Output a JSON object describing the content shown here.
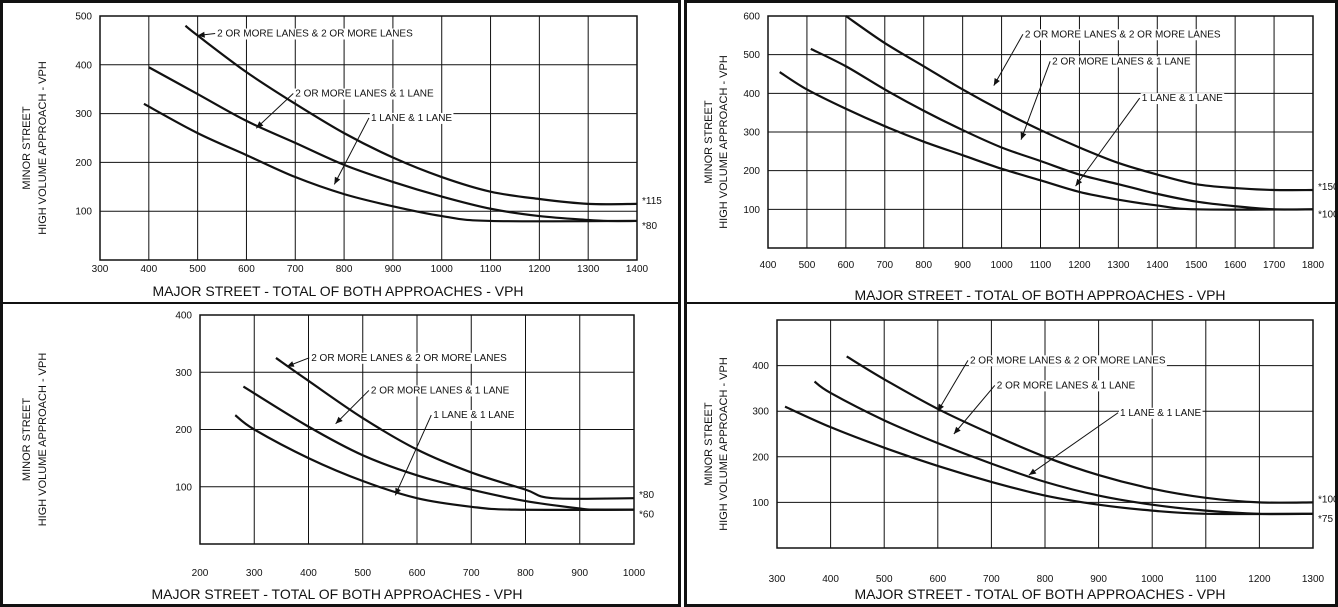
{
  "chart_data": [
    {
      "type": "line",
      "xlabel": "MAJOR STREET - TOTAL OF BOTH APPROACHES - VPH",
      "ylabel_lines": [
        "MINOR STREET",
        "HIGH VOLUME APPROACH - VPH"
      ],
      "xlim": [
        300,
        1400
      ],
      "ylim": [
        0,
        500
      ],
      "x_ticks": [
        300,
        400,
        500,
        600,
        700,
        800,
        900,
        1000,
        1100,
        1200,
        1300,
        1400
      ],
      "y_ticks": [
        100,
        200,
        300,
        400,
        500
      ],
      "grid": true,
      "series": [
        {
          "name": "2 OR MORE LANES & 2 OR MORE LANES",
          "x": [
            475,
            500,
            600,
            700,
            800,
            900,
            1000,
            1100,
            1200,
            1300,
            1400
          ],
          "y": [
            480,
            460,
            385,
            320,
            260,
            210,
            170,
            140,
            125,
            115,
            115
          ],
          "floor_label": "*115",
          "label_xy": [
            540,
            458
          ],
          "arrow_to": [
            500,
            460
          ]
        },
        {
          "name": "2 OR MORE LANES & 1 LANE",
          "x": [
            400,
            500,
            600,
            700,
            800,
            900,
            1000,
            1100,
            1200,
            1300,
            1340,
            1400
          ],
          "y": [
            395,
            340,
            285,
            240,
            195,
            160,
            130,
            105,
            90,
            82,
            80,
            80
          ],
          "floor_label": "*80",
          "label_xy": [
            700,
            335
          ],
          "arrow_to": [
            620,
            270
          ]
        },
        {
          "name": "1 LANE & 1 LANE",
          "x": [
            390,
            500,
            600,
            700,
            800,
            900,
            1000,
            1100,
            1400
          ],
          "y": [
            320,
            260,
            215,
            170,
            135,
            110,
            90,
            80,
            80
          ],
          "label_xy": [
            855,
            285
          ],
          "arrow_to": [
            780,
            155
          ]
        }
      ],
      "floor_values": [
        "*115",
        "*80"
      ]
    },
    {
      "type": "line",
      "xlabel": "MAJOR STREET - TOTAL OF BOTH APPROACHES - VPH",
      "ylabel_lines": [
        "MINOR STREET",
        "HIGH VOLUME APPROACH - VPH"
      ],
      "xlim": [
        400,
        1800
      ],
      "ylim": [
        0,
        600
      ],
      "x_ticks": [
        400,
        500,
        600,
        700,
        800,
        900,
        1000,
        1100,
        1200,
        1300,
        1400,
        1500,
        1600,
        1700,
        1800
      ],
      "y_ticks": [
        100,
        200,
        300,
        400,
        500,
        600
      ],
      "grid": true,
      "series": [
        {
          "name": "2 OR MORE LANES & 2 OR MORE LANES",
          "x": [
            600,
            700,
            800,
            900,
            1000,
            1100,
            1200,
            1300,
            1400,
            1500,
            1600,
            1700,
            1800
          ],
          "y": [
            600,
            530,
            470,
            410,
            355,
            305,
            260,
            220,
            190,
            165,
            155,
            150,
            150
          ],
          "floor_label": "*150",
          "label_xy": [
            1060,
            545
          ],
          "arrow_to": [
            980,
            420
          ]
        },
        {
          "name": "2 OR MORE LANES & 1 LANE",
          "x": [
            510,
            600,
            700,
            800,
            900,
            1000,
            1100,
            1200,
            1300,
            1400,
            1500,
            1600,
            1700,
            1800
          ],
          "y": [
            515,
            470,
            410,
            355,
            305,
            260,
            225,
            190,
            165,
            140,
            120,
            108,
            100,
            100
          ],
          "floor_label": "*100",
          "label_xy": [
            1130,
            475
          ],
          "arrow_to": [
            1050,
            280
          ]
        },
        {
          "name": "1 LANE & 1 LANE",
          "x": [
            430,
            500,
            600,
            700,
            800,
            900,
            1000,
            1100,
            1200,
            1300,
            1400,
            1500,
            1800
          ],
          "y": [
            455,
            410,
            360,
            315,
            275,
            240,
            205,
            175,
            145,
            125,
            110,
            100,
            100
          ],
          "label_xy": [
            1360,
            380
          ],
          "arrow_to": [
            1190,
            160
          ]
        }
      ],
      "floor_values": [
        "*150",
        "*100"
      ]
    },
    {
      "type": "line",
      "xlabel": "MAJOR STREET - TOTAL OF BOTH APPROACHES - VPH",
      "ylabel_lines": [
        "MINOR STREET",
        "HIGH VOLUME APPROACH - VPH"
      ],
      "xlim": [
        200,
        1000
      ],
      "ylim": [
        0,
        400
      ],
      "x_ticks": [
        200,
        300,
        400,
        500,
        600,
        700,
        800,
        900,
        1000
      ],
      "y_ticks": [
        100,
        200,
        300,
        400
      ],
      "grid": true,
      "series": [
        {
          "name": "2 OR MORE LANES & 2 OR MORE LANES",
          "x": [
            340,
            400,
            500,
            600,
            700,
            800,
            850,
            1000
          ],
          "y": [
            325,
            285,
            220,
            165,
            125,
            95,
            80,
            80
          ],
          "floor_label": "*80",
          "label_xy": [
            405,
            320
          ],
          "arrow_to": [
            360,
            310
          ]
        },
        {
          "name": "2 OR MORE LANES & 1 LANE",
          "x": [
            280,
            400,
            500,
            600,
            700,
            800,
            900,
            930,
            1000
          ],
          "y": [
            275,
            205,
            155,
            120,
            95,
            75,
            62,
            60,
            60
          ],
          "floor_label": "*60",
          "label_xy": [
            515,
            263
          ],
          "arrow_to": [
            450,
            210
          ]
        },
        {
          "name": "1 LANE & 1 LANE",
          "x": [
            265,
            300,
            400,
            500,
            600,
            700,
            780,
            1000
          ],
          "y": [
            225,
            200,
            150,
            110,
            80,
            65,
            60,
            60
          ],
          "label_xy": [
            630,
            220
          ],
          "arrow_to": [
            560,
            85
          ]
        }
      ],
      "floor_values": [
        "*80",
        "*60"
      ]
    },
    {
      "type": "line",
      "xlabel": "MAJOR STREET - TOTAL OF BOTH APPROACHES - VPH",
      "ylabel_lines": [
        "MINOR STREET",
        "HIGH VOLUME APPROACH - VPH"
      ],
      "xlim": [
        300,
        1300
      ],
      "ylim": [
        0,
        500
      ],
      "x_ticks": [
        300,
        400,
        500,
        600,
        700,
        800,
        900,
        1000,
        1100,
        1200,
        1300
      ],
      "y_ticks": [
        100,
        200,
        300,
        400
      ],
      "grid": true,
      "series": [
        {
          "name": "2 OR MORE LANES & 2 OR MORE LANES",
          "x": [
            430,
            500,
            600,
            700,
            800,
            900,
            1000,
            1100,
            1200,
            1300
          ],
          "y": [
            420,
            370,
            305,
            250,
            200,
            160,
            130,
            110,
            100,
            100
          ],
          "floor_label": "*100",
          "label_xy": [
            660,
            405
          ],
          "arrow_to": [
            600,
            300
          ]
        },
        {
          "name": "2 OR MORE LANES & 1 LANE",
          "x": [
            370,
            400,
            500,
            600,
            700,
            800,
            900,
            1000,
            1100,
            1200,
            1300
          ],
          "y": [
            365,
            340,
            280,
            230,
            185,
            145,
            115,
            95,
            82,
            75,
            75
          ],
          "floor_label": "*75",
          "label_xy": [
            710,
            350
          ],
          "arrow_to": [
            630,
            250
          ]
        },
        {
          "name": "1 LANE & 1 LANE",
          "x": [
            315,
            400,
            500,
            600,
            700,
            800,
            900,
            1000,
            1100,
            1300
          ],
          "y": [
            310,
            265,
            220,
            180,
            145,
            115,
            95,
            82,
            75,
            75
          ],
          "label_xy": [
            940,
            290
          ],
          "arrow_to": [
            770,
            160
          ]
        }
      ],
      "floor_values": [
        "*100",
        "*75"
      ]
    }
  ]
}
